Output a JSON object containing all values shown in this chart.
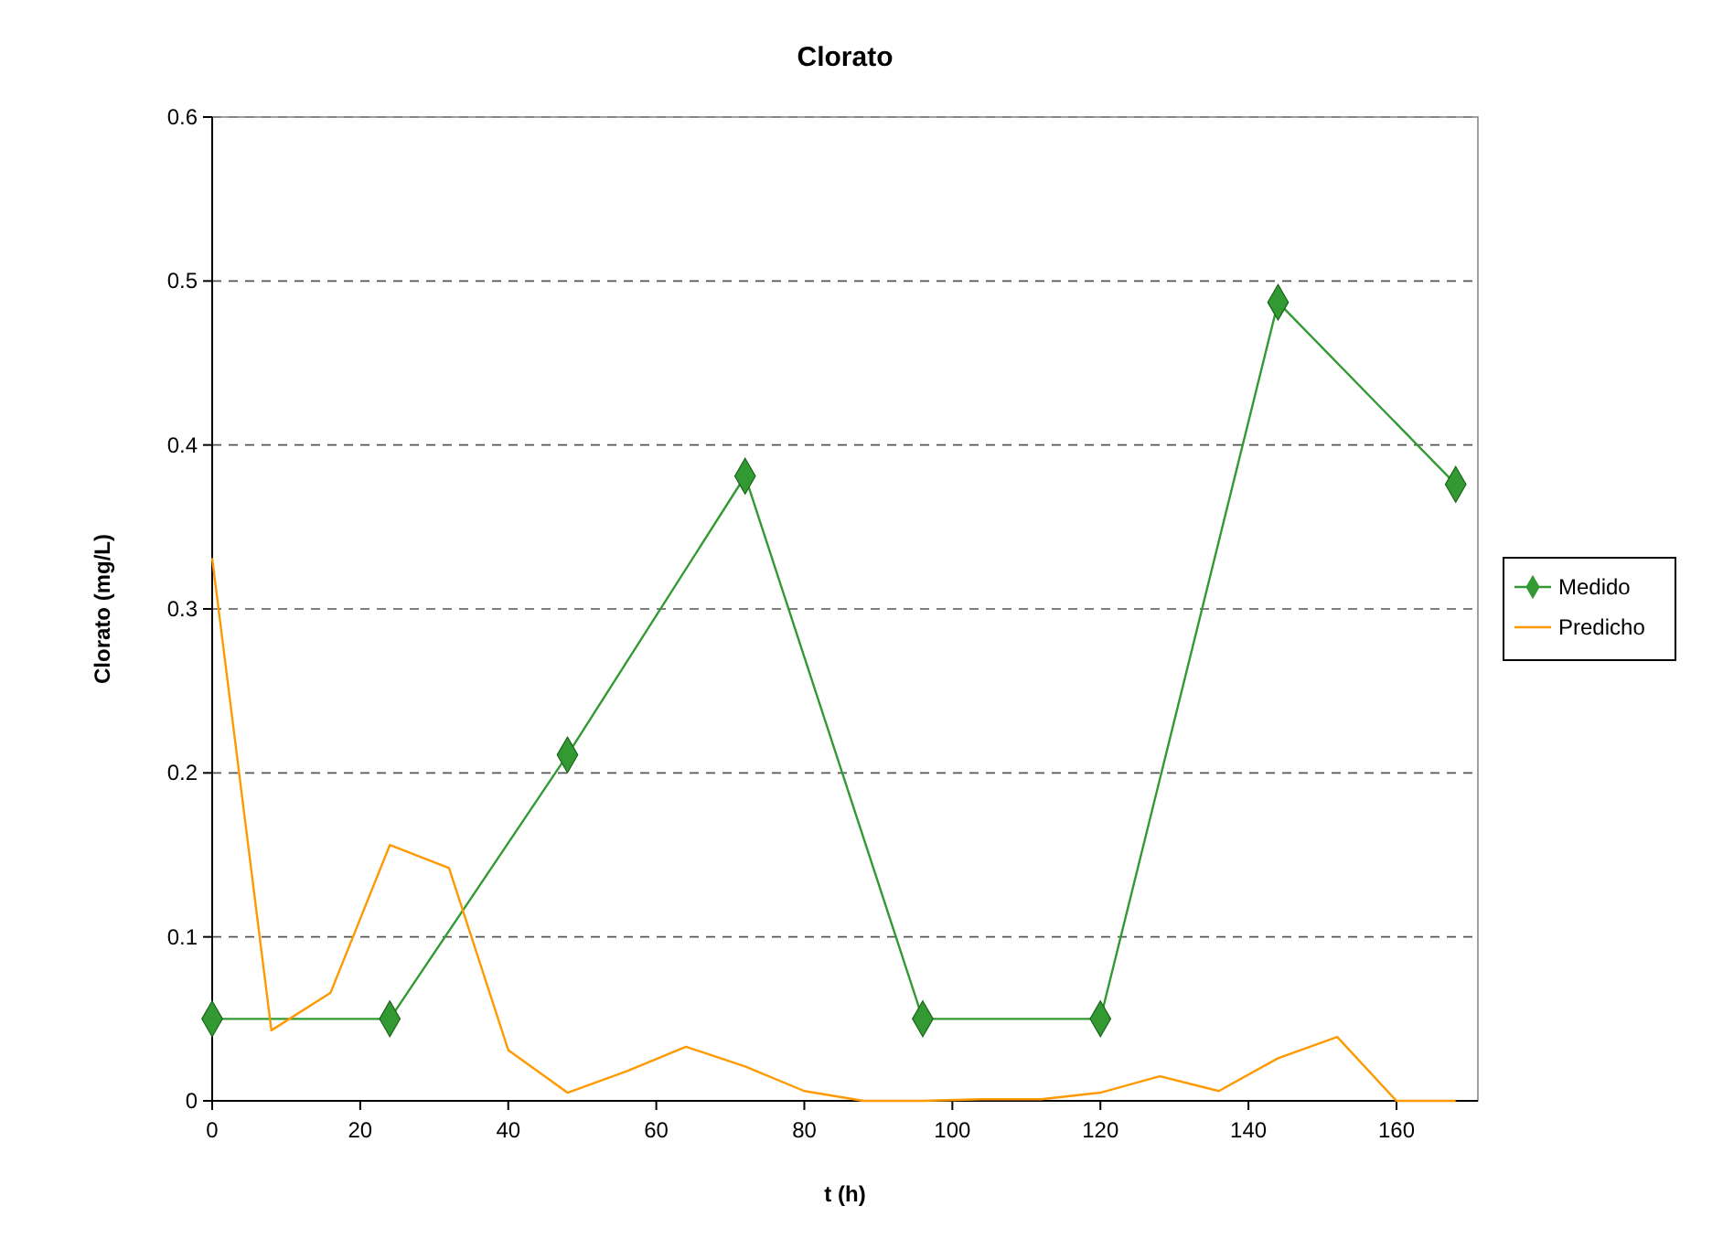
{
  "chart_data": {
    "type": "line",
    "title": "Clorato",
    "xlabel": "t (h)",
    "ylabel": "Clorato (mg/L)",
    "xlim": [
      0,
      171
    ],
    "xticks": [
      0,
      20,
      40,
      60,
      80,
      100,
      120,
      140,
      160
    ],
    "ylim": [
      0,
      0.6
    ],
    "yticks": [
      0,
      0.1,
      0.2,
      0.3,
      0.4,
      0.5,
      0.6
    ],
    "grid": "y",
    "legend": "right",
    "series": [
      {
        "name": "Medido",
        "color": "#339933",
        "marker": "diamond",
        "x": [
          0,
          24,
          48,
          72,
          96,
          120,
          144,
          168
        ],
        "values": [
          0.05,
          0.05,
          0.211,
          0.381,
          0.05,
          0.05,
          0.487,
          0.376
        ]
      },
      {
        "name": "Predicho",
        "color": "#ff9900",
        "marker": "none",
        "x": [
          0,
          8,
          16,
          24,
          32,
          40,
          48,
          56,
          64,
          72,
          80,
          88,
          96,
          104,
          112,
          120,
          128,
          136,
          144,
          152,
          160,
          168
        ],
        "values": [
          0.331,
          0.043,
          0.066,
          0.156,
          0.142,
          0.031,
          0.005,
          0.018,
          0.033,
          0.021,
          0.006,
          0,
          0,
          0.001,
          0.001,
          0.005,
          0.015,
          0.006,
          0.026,
          0.039,
          0,
          0
        ]
      }
    ]
  }
}
